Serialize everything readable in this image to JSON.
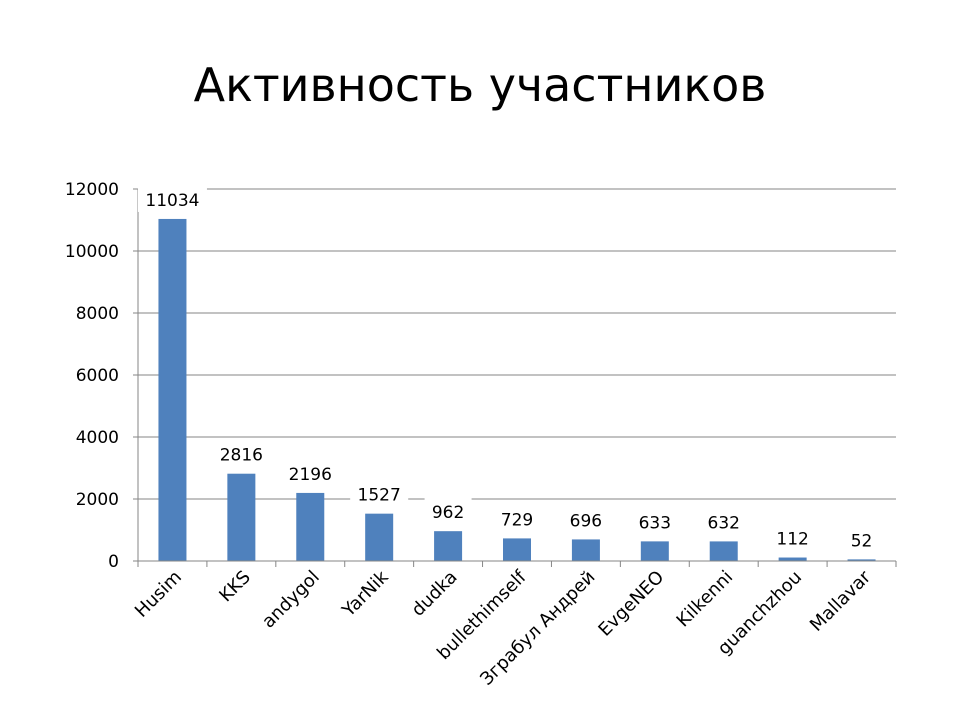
{
  "slide": {
    "title": "Активность участников"
  },
  "chart_data": {
    "type": "bar",
    "categories": [
      "Husim",
      "KKS",
      "andygol",
      "YarNik",
      "dudka",
      "bullethimself",
      "Зграбул Андрей",
      "EvgeNEO",
      "Kilkenni",
      "guanchzhou",
      "Mallavar"
    ],
    "values": [
      11034,
      2816,
      2196,
      1527,
      962,
      729,
      696,
      633,
      632,
      112,
      52
    ],
    "data_labels": [
      "11034",
      "2816",
      "2196",
      "1527",
      "962",
      "729",
      "696",
      "633",
      "632",
      "112",
      "52"
    ],
    "y_ticks": [
      0,
      2000,
      4000,
      6000,
      8000,
      10000,
      12000
    ],
    "y_tick_labels": [
      "0",
      "2000",
      "4000",
      "6000",
      "8000",
      "10000",
      "12000"
    ],
    "ylim": [
      0,
      12000
    ],
    "title": "",
    "xlabel": "",
    "ylabel": "",
    "grid": true,
    "legend": "none",
    "colors": {
      "bar": "#4F81BD",
      "grid": "#868686",
      "axis": "#868686"
    }
  }
}
